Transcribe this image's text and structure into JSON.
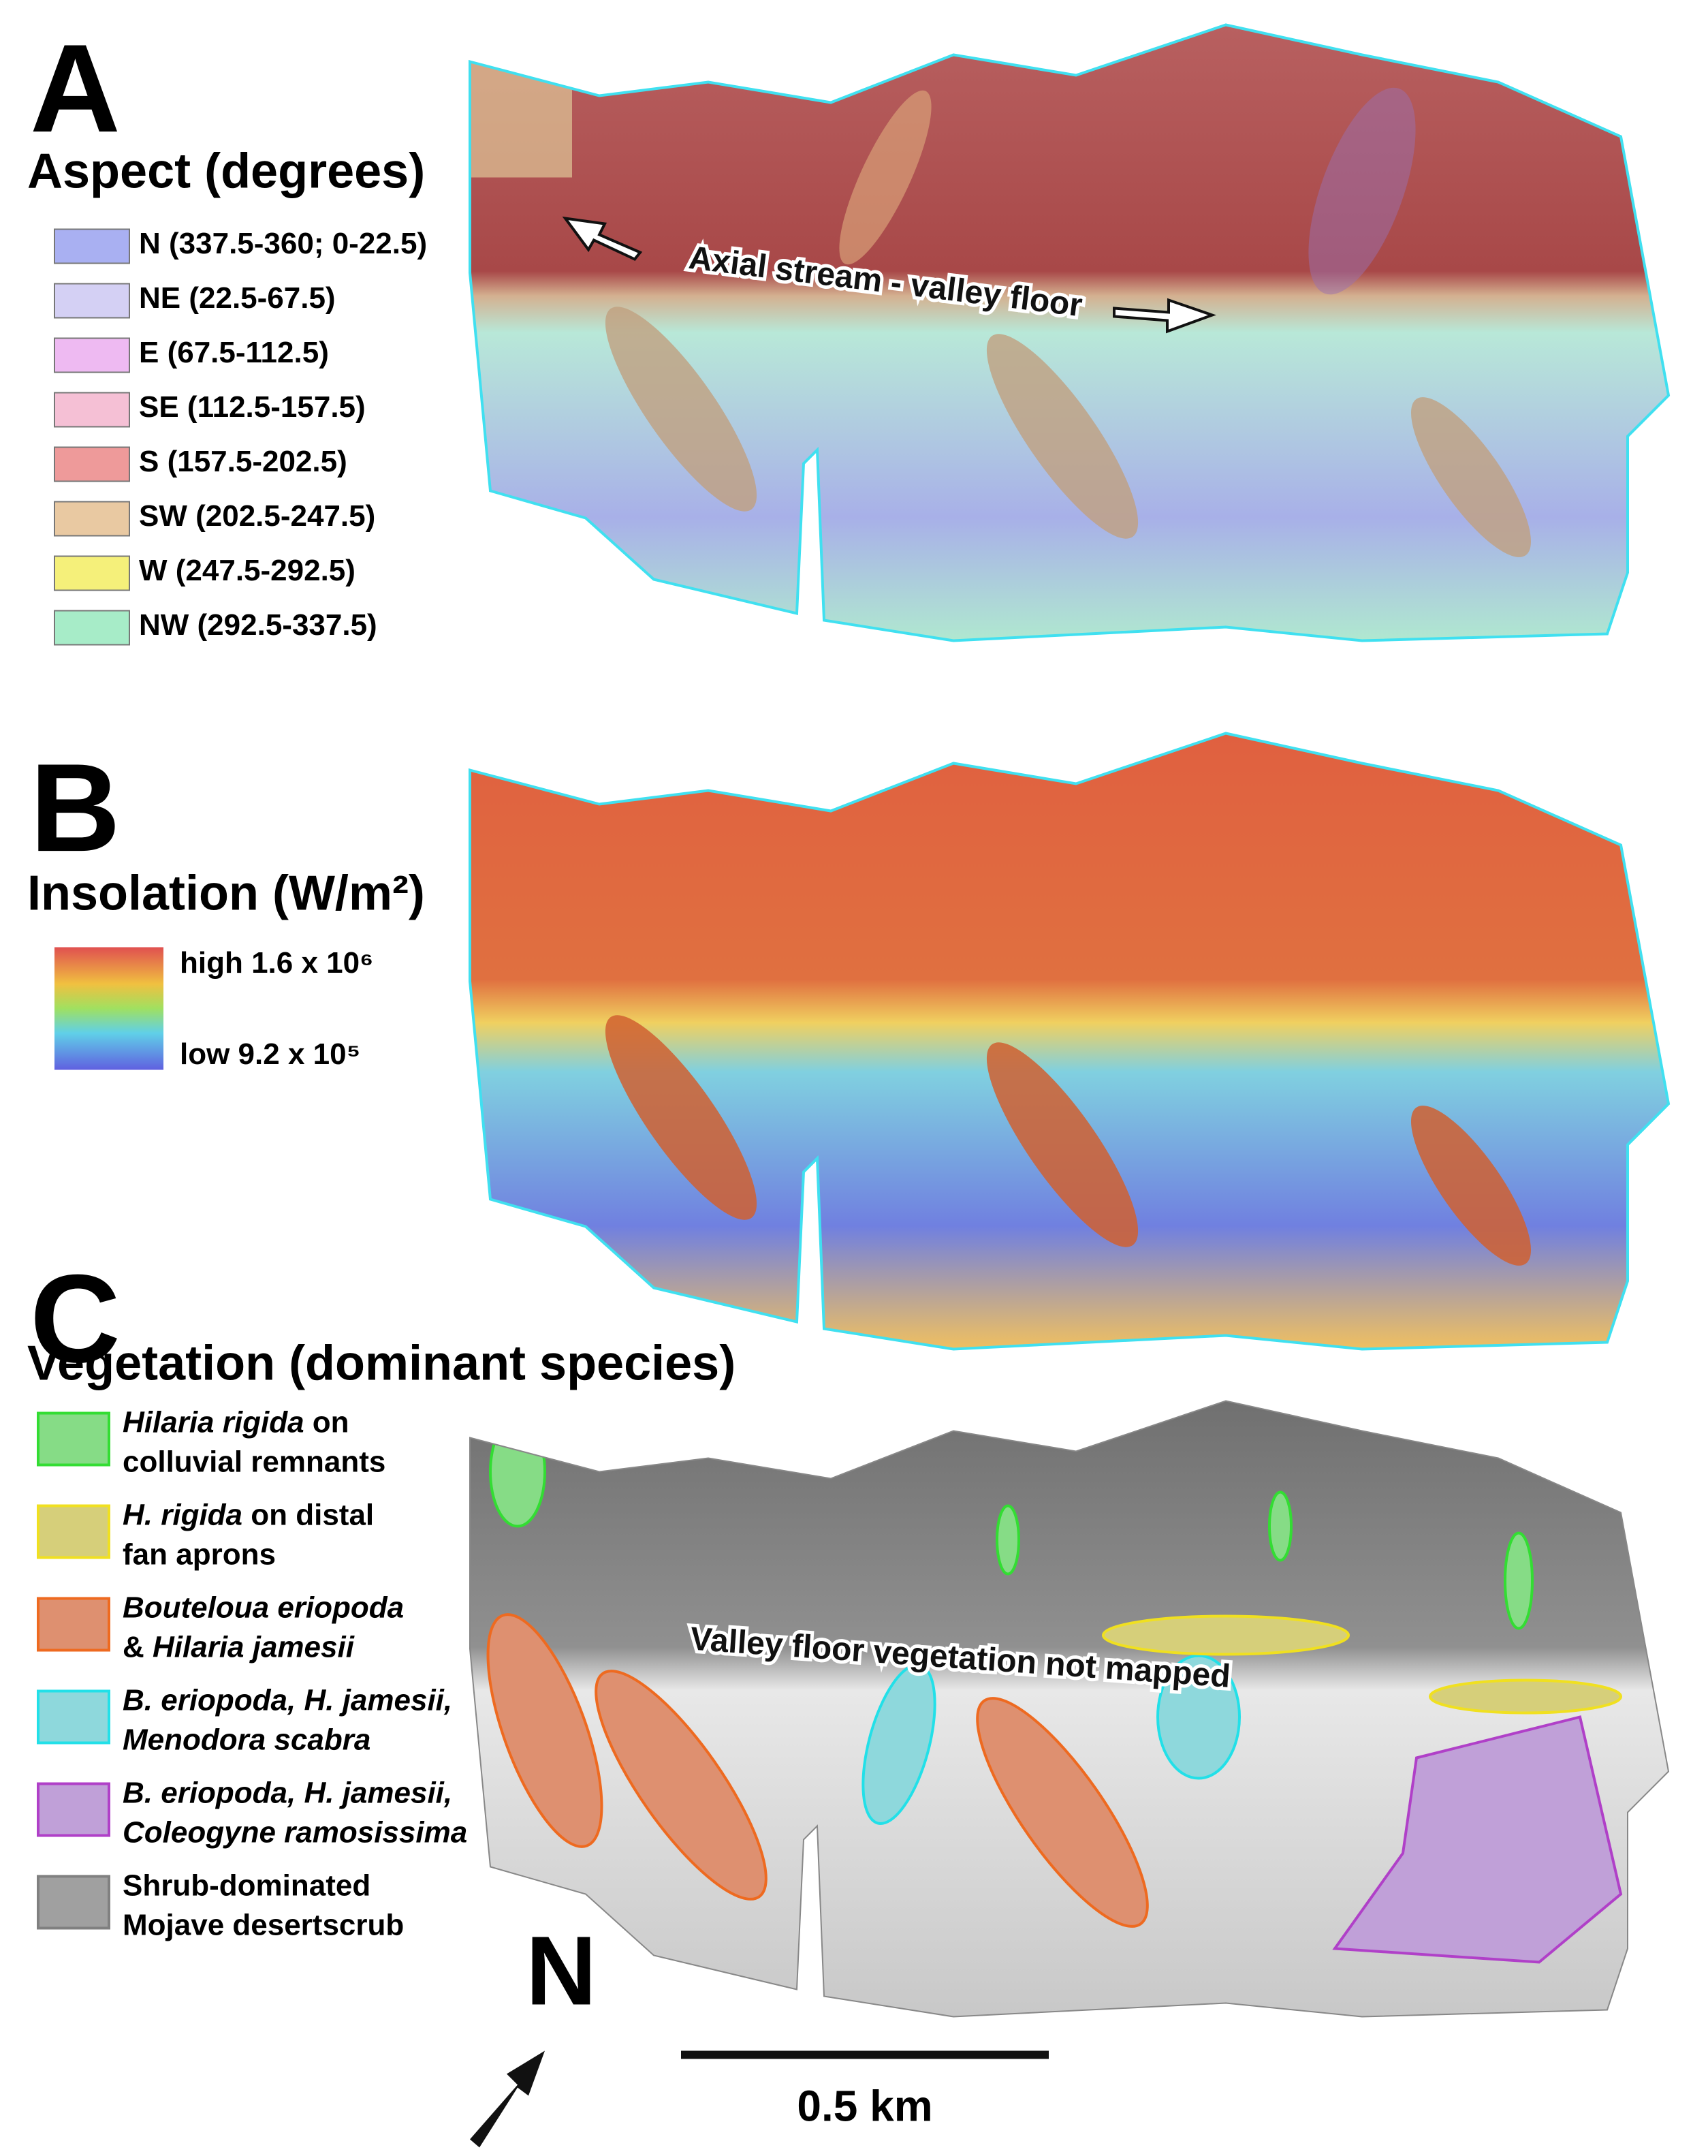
{
  "panels": [
    {
      "label": "A",
      "title": "Aspect (degrees)",
      "legend": [
        {
          "label": "N (337.5-360; 0-22.5)",
          "color": "#a9b0f2"
        },
        {
          "label": "NE (22.5-67.5)",
          "color": "#d4d0f4"
        },
        {
          "label": "E (67.5-112.5)",
          "color": "#eebaf2"
        },
        {
          "label": "SE (112.5-157.5)",
          "color": "#f5c0d5"
        },
        {
          "label": "S (157.5-202.5)",
          "color": "#ee9a9a"
        },
        {
          "label": "SW (202.5-247.5)",
          "color": "#e9c9a2"
        },
        {
          "label": "W (247.5-292.5)",
          "color": "#f5f07a"
        },
        {
          "label": "NW (292.5-337.5)",
          "color": "#a7ecc8"
        }
      ],
      "annotation": "Axial stream - valley floor"
    },
    {
      "label": "B",
      "title": "Insolation (W/m²)",
      "legend_high": "high 1.6 x 10⁶",
      "legend_low": "low 9.2 x 10⁵"
    },
    {
      "label": "C",
      "title": "Vegetation (dominant species)",
      "legend": [
        {
          "color": "#86dc86",
          "border": "#33dd33",
          "lines": [
            [
              {
                "text": "Hilaria rigida",
                "italic": true
              },
              {
                "text": " on",
                "italic": false
              }
            ],
            [
              {
                "text": "colluvial remnants",
                "italic": false
              }
            ]
          ]
        },
        {
          "color": "#d6cf7a",
          "border": "#f0e020",
          "lines": [
            [
              {
                "text": "H. rigida",
                "italic": true
              },
              {
                "text": " on distal",
                "italic": false
              }
            ],
            [
              {
                "text": "fan aprons",
                "italic": false
              }
            ]
          ]
        },
        {
          "color": "#de9070",
          "border": "#ee6a20",
          "lines": [
            [
              {
                "text": "Bouteloua eriopoda",
                "italic": true
              }
            ],
            [
              {
                "text": "& ",
                "italic": false
              },
              {
                "text": "Hilaria jamesii",
                "italic": true
              }
            ]
          ]
        },
        {
          "color": "#8ed8dc",
          "border": "#22e0e8",
          "lines": [
            [
              {
                "text": "B. eriopoda, H. jamesii,",
                "italic": true
              }
            ],
            [
              {
                "text": "Menodora scabra",
                "italic": true
              }
            ]
          ]
        },
        {
          "color": "#c0a0d8",
          "border": "#b040c8",
          "lines": [
            [
              {
                "text": "B. eriopoda, H. jamesii,",
                "italic": true
              }
            ],
            [
              {
                "text": "Coleogyne ramosissima",
                "italic": true
              }
            ]
          ]
        },
        {
          "color": "#a0a0a0",
          "border": "#808080",
          "lines": [
            [
              {
                "text": "Shrub-dominated",
                "italic": false
              }
            ],
            [
              {
                "text": "Mojave desertscrub",
                "italic": false
              }
            ]
          ]
        }
      ],
      "annotation": "Valley floor vegetation not mapped"
    }
  ],
  "north": "N",
  "scale_bar": "0.5 km"
}
